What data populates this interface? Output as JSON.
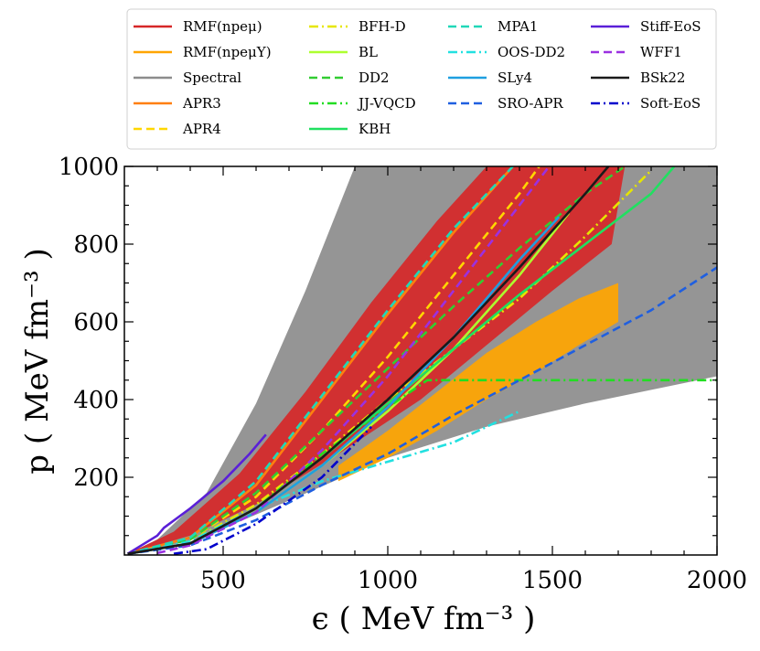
{
  "chart_data": {
    "type": "line",
    "title": "",
    "xlabel": "ϵ ( MeV fm⁻³ )",
    "ylabel": "p ( MeV fm⁻³ )",
    "xlim": [
      200,
      2000
    ],
    "ylim": [
      0,
      1000
    ],
    "x_ticks": [
      500,
      1000,
      1500,
      2000
    ],
    "y_ticks": [
      200,
      400,
      600,
      800,
      1000
    ],
    "x_tick_labels": [
      "500",
      "1000",
      "1500",
      "2000"
    ],
    "y_tick_labels": [
      "200",
      "400",
      "600",
      "800",
      "1000"
    ],
    "legend_position": "top (above plot, 4 columns)",
    "band_series": [
      {
        "name": "Spectral",
        "color": "#8c8c8c",
        "lower": [
          [
            210,
            3
          ],
          [
            300,
            15
          ],
          [
            450,
            50
          ],
          [
            700,
            140
          ],
          [
            1000,
            250
          ],
          [
            1300,
            330
          ],
          [
            1600,
            390
          ],
          [
            2000,
            460
          ]
        ],
        "upper": [
          [
            210,
            3
          ],
          [
            300,
            40
          ],
          [
            450,
            160
          ],
          [
            600,
            390
          ],
          [
            750,
            680
          ],
          [
            900,
            1000
          ],
          [
            2000,
            1000
          ]
        ]
      },
      {
        "name": "RMF(npeμ)",
        "color": "#d62728",
        "lower": [
          [
            210,
            3
          ],
          [
            400,
            50
          ],
          [
            600,
            130
          ],
          [
            850,
            260
          ],
          [
            1100,
            400
          ],
          [
            1300,
            540
          ],
          [
            1500,
            680
          ],
          [
            1680,
            800
          ]
        ],
        "upper": [
          [
            210,
            3
          ],
          [
            350,
            60
          ],
          [
            550,
            210
          ],
          [
            750,
            420
          ],
          [
            950,
            650
          ],
          [
            1150,
            860
          ],
          [
            1300,
            1000
          ],
          [
            1720,
            1000
          ]
        ]
      },
      {
        "name": "RMF(npeμY)",
        "color": "#ffa500",
        "lower": [
          [
            850,
            190
          ],
          [
            1000,
            250
          ],
          [
            1150,
            320
          ],
          [
            1300,
            400
          ],
          [
            1450,
            470
          ],
          [
            1580,
            540
          ],
          [
            1700,
            600
          ]
        ],
        "upper": [
          [
            850,
            230
          ],
          [
            1000,
            320
          ],
          [
            1150,
            420
          ],
          [
            1300,
            520
          ],
          [
            1450,
            600
          ],
          [
            1580,
            660
          ],
          [
            1700,
            700
          ]
        ]
      }
    ],
    "series": [
      {
        "name": "APR3",
        "color": "#ff7f0e",
        "style": "solid",
        "points": [
          [
            210,
            3
          ],
          [
            400,
            45
          ],
          [
            600,
            180
          ],
          [
            800,
            400
          ],
          [
            1000,
            620
          ],
          [
            1200,
            830
          ],
          [
            1380,
            1000
          ]
        ]
      },
      {
        "name": "APR4",
        "color": "#ffd700",
        "style": "dashed",
        "points": [
          [
            210,
            3
          ],
          [
            400,
            40
          ],
          [
            600,
            150
          ],
          [
            800,
            320
          ],
          [
            1000,
            510
          ],
          [
            1200,
            720
          ],
          [
            1400,
            930
          ],
          [
            1460,
            1000
          ]
        ]
      },
      {
        "name": "BFH-D",
        "color": "#e6e600",
        "style": "dashdot",
        "points": [
          [
            210,
            3
          ],
          [
            400,
            35
          ],
          [
            600,
            130
          ],
          [
            800,
            260
          ],
          [
            1000,
            400
          ],
          [
            1200,
            530
          ],
          [
            1400,
            660
          ],
          [
            1600,
            820
          ],
          [
            1800,
            990
          ]
        ]
      },
      {
        "name": "BL",
        "color": "#adff2f",
        "style": "solid",
        "points": [
          [
            210,
            3
          ],
          [
            400,
            30
          ],
          [
            600,
            110
          ],
          [
            800,
            230
          ],
          [
            1000,
            370
          ],
          [
            1200,
            530
          ],
          [
            1400,
            720
          ],
          [
            1550,
            880
          ]
        ]
      },
      {
        "name": "DD2",
        "color": "#32cd32",
        "style": "dashed",
        "points": [
          [
            210,
            3
          ],
          [
            400,
            40
          ],
          [
            600,
            160
          ],
          [
            800,
            320
          ],
          [
            1000,
            480
          ],
          [
            1200,
            640
          ],
          [
            1400,
            790
          ],
          [
            1600,
            930
          ],
          [
            1720,
            1000
          ]
        ]
      },
      {
        "name": "JJ-VQCD",
        "color": "#22dd22",
        "style": "dashdot",
        "points": [
          [
            210,
            3
          ],
          [
            400,
            30
          ],
          [
            600,
            120
          ],
          [
            800,
            260
          ],
          [
            1000,
            380
          ],
          [
            1120,
            450
          ],
          [
            2000,
            450
          ]
        ]
      },
      {
        "name": "KBH",
        "color": "#20e060",
        "style": "solid",
        "points": [
          [
            210,
            3
          ],
          [
            400,
            30
          ],
          [
            600,
            120
          ],
          [
            800,
            250
          ],
          [
            1000,
            390
          ],
          [
            1200,
            530
          ],
          [
            1400,
            670
          ],
          [
            1600,
            800
          ],
          [
            1800,
            930
          ],
          [
            1870,
            1000
          ]
        ]
      },
      {
        "name": "MPA1",
        "color": "#20d8b8",
        "style": "dashed",
        "points": [
          [
            210,
            3
          ],
          [
            400,
            45
          ],
          [
            600,
            190
          ],
          [
            800,
            410
          ],
          [
            1000,
            630
          ],
          [
            1200,
            840
          ],
          [
            1380,
            1000
          ]
        ]
      },
      {
        "name": "OOS-DD2",
        "color": "#22e0e0",
        "style": "dashdot",
        "points": [
          [
            210,
            3
          ],
          [
            400,
            35
          ],
          [
            600,
            120
          ],
          [
            800,
            190
          ],
          [
            1000,
            240
          ],
          [
            1200,
            290
          ],
          [
            1400,
            370
          ]
        ]
      },
      {
        "name": "SLy4",
        "color": "#1f9fe0",
        "style": "solid",
        "points": [
          [
            210,
            3
          ],
          [
            400,
            30
          ],
          [
            600,
            110
          ],
          [
            800,
            230
          ],
          [
            1000,
            380
          ],
          [
            1200,
            560
          ],
          [
            1400,
            760
          ],
          [
            1520,
            870
          ]
        ]
      },
      {
        "name": "SRO-APR",
        "color": "#1f5fe0",
        "style": "dashed",
        "points": [
          [
            210,
            3
          ],
          [
            400,
            25
          ],
          [
            600,
            90
          ],
          [
            800,
            180
          ],
          [
            1000,
            260
          ],
          [
            1200,
            360
          ],
          [
            1400,
            450
          ],
          [
            1600,
            540
          ],
          [
            1800,
            630
          ],
          [
            2000,
            740
          ]
        ]
      },
      {
        "name": "Stiff-EoS",
        "color": "#5a1fd8",
        "style": "solid",
        "points": [
          [
            210,
            3
          ],
          [
            300,
            50
          ],
          [
            320,
            70
          ],
          [
            400,
            120
          ],
          [
            500,
            190
          ],
          [
            580,
            260
          ],
          [
            630,
            310
          ]
        ]
      },
      {
        "name": "WFF1",
        "color": "#9b30e0",
        "style": "dashed",
        "points": [
          [
            300,
            5
          ],
          [
            400,
            25
          ],
          [
            600,
            110
          ],
          [
            800,
            270
          ],
          [
            1000,
            460
          ],
          [
            1200,
            680
          ],
          [
            1400,
            900
          ],
          [
            1490,
            1000
          ]
        ]
      },
      {
        "name": "BSk22",
        "color": "#1a1a1a",
        "style": "solid",
        "points": [
          [
            210,
            3
          ],
          [
            400,
            30
          ],
          [
            600,
            120
          ],
          [
            800,
            250
          ],
          [
            1000,
            400
          ],
          [
            1200,
            560
          ],
          [
            1400,
            740
          ],
          [
            1600,
            930
          ],
          [
            1670,
            1000
          ]
        ]
      },
      {
        "name": "Soft-EoS",
        "color": "#0000cc",
        "style": "dashdot",
        "points": [
          [
            350,
            3
          ],
          [
            450,
            15
          ],
          [
            600,
            80
          ],
          [
            800,
            200
          ],
          [
            950,
            330
          ]
        ]
      }
    ]
  }
}
